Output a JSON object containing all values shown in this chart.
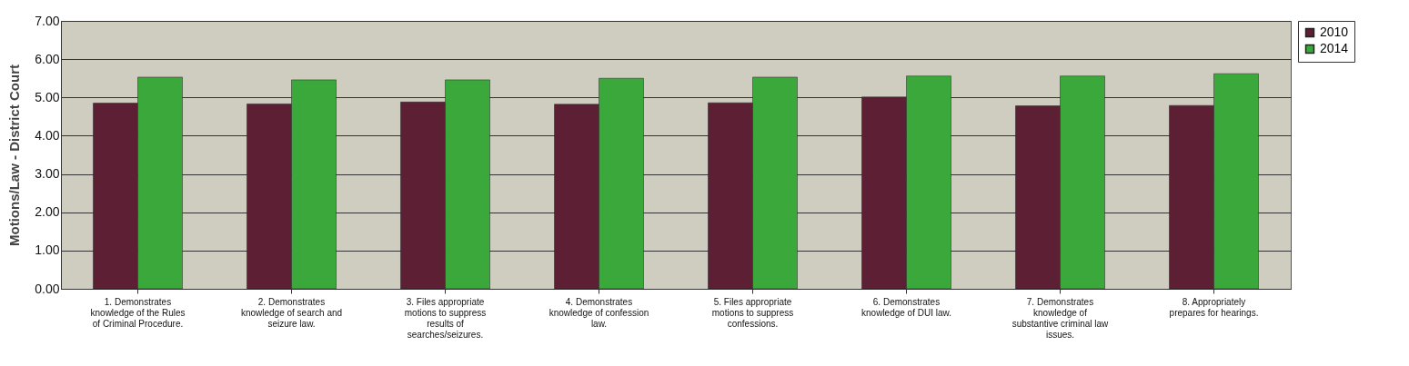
{
  "chart_data": {
    "type": "bar",
    "ylabel": "Motions/Law - District Court",
    "categories": [
      "1. Demonstrates knowledge of the Rules of Criminal Procedure.",
      "2. Demonstrates knowledge of search and seizure law.",
      "3. Files appropriate motions to suppress results of searches/seizures.",
      "4. Demonstrates knowledge of confession law.",
      "5. Files appropriate motions to suppress confessions.",
      "6. Demonstrates knowledge of DUI law.",
      "7. Demonstrates knowledge of substantive criminal law issues.",
      "8. Appropriately prepares for hearings."
    ],
    "series": [
      {
        "name": "2010",
        "color": "#5c1f33",
        "values": [
          4.85,
          4.83,
          4.88,
          4.82,
          4.86,
          5.01,
          4.78,
          4.79
        ]
      },
      {
        "name": "2014",
        "color": "#3aa83a",
        "values": [
          5.53,
          5.46,
          5.46,
          5.5,
          5.53,
          5.56,
          5.56,
          5.62
        ]
      }
    ],
    "ylim": [
      0,
      7
    ],
    "yticks": [
      {
        "value": 0,
        "label": "0.00"
      },
      {
        "value": 1,
        "label": "1.00"
      },
      {
        "value": 2,
        "label": "2.00"
      },
      {
        "value": 3,
        "label": "3.00"
      },
      {
        "value": 4,
        "label": "4.00"
      },
      {
        "value": 5,
        "label": "5.00"
      },
      {
        "value": 6,
        "label": "6.00"
      },
      {
        "value": 7,
        "label": "7.00"
      }
    ],
    "grid": "y",
    "legend": "right"
  }
}
